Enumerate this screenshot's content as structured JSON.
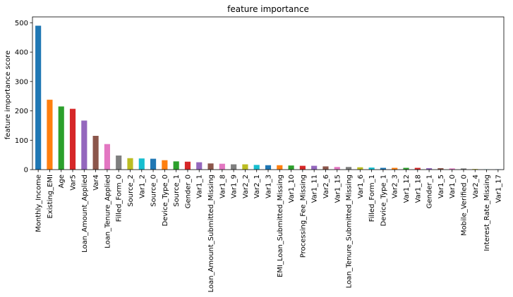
{
  "chart_data": {
    "type": "bar",
    "title": "feature importance",
    "xlabel": "",
    "ylabel": "feature importance score",
    "ylim": [
      0,
      520
    ],
    "yticks": [
      0,
      100,
      200,
      300,
      400,
      500
    ],
    "grid": false,
    "categories": [
      "Monthly_Income",
      "Existing_EMI",
      "Age",
      "Var5",
      "Loan_Amount_Applied",
      "Var4",
      "Loan_Tenure_Applied",
      "Filled_Form_0",
      "Source_2",
      "Var1_2",
      "Source_0",
      "Device_Type_0",
      "Source_1",
      "Gender_0",
      "Var1_1",
      "Loan_Amount_Submitted_Missing",
      "Var1_8",
      "Var1_9",
      "Var2_2",
      "Var2_1",
      "Var1_3",
      "EMI_Loan_Submitted_Missing",
      "Var1_10",
      "Processing_Fee_Missing",
      "Var1_11",
      "Var2_6",
      "Var1_15",
      "Loan_Tenure_Submitted_Missing",
      "Var1_6",
      "Filled_Form_1",
      "Device_Type_1",
      "Var2_3",
      "Var1_12",
      "Var1_18",
      "Gender_1",
      "Var1_5",
      "Var1_0",
      "Mobile_Verified_0",
      "Var2_4",
      "Interest_Rate_Missing",
      "Var1_17"
    ],
    "values": [
      490,
      238,
      215,
      207,
      167,
      115,
      87,
      48,
      39,
      38,
      37,
      32,
      28,
      27,
      25,
      21,
      20,
      18,
      18,
      16,
      15,
      15,
      14,
      13,
      13,
      11,
      9,
      9,
      8,
      7,
      6,
      6,
      6,
      6,
      5,
      5,
      4,
      4,
      2,
      1,
      1
    ],
    "colors": [
      "#1f77b4",
      "#ff7f0e",
      "#2ca02c",
      "#d62728",
      "#9467bd",
      "#8c564b",
      "#e377c2",
      "#7f7f7f",
      "#bcbd22",
      "#17becf"
    ]
  }
}
